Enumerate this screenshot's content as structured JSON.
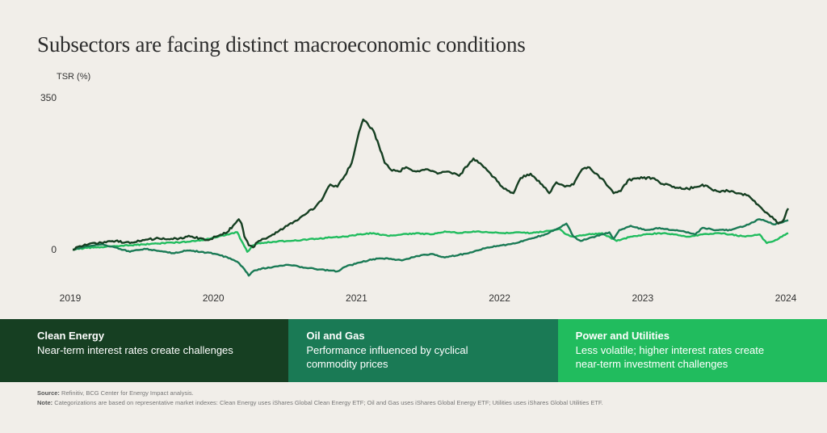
{
  "title": "Subsectors are facing distinct macroeconomic conditions",
  "chart_data": {
    "type": "line",
    "title": "Subsectors are facing distinct macroeconomic conditions",
    "xlabel": "",
    "ylabel": "TSR (%)",
    "y_ticks": [
      0,
      350
    ],
    "x_ticks": [
      "2019",
      "2020",
      "2021",
      "2022",
      "2023",
      "2024"
    ],
    "xlim": [
      2019,
      2024
    ],
    "ylim": [
      -60,
      350
    ],
    "grid": false,
    "legend": "bottom",
    "series": [
      {
        "name": "Clean Energy",
        "color": "#163f22",
        "points": [
          [
            2019.0,
            0
          ],
          [
            2019.05,
            8
          ],
          [
            2019.12,
            14
          ],
          [
            2019.2,
            16
          ],
          [
            2019.3,
            20
          ],
          [
            2019.4,
            15
          ],
          [
            2019.5,
            22
          ],
          [
            2019.6,
            26
          ],
          [
            2019.7,
            24
          ],
          [
            2019.8,
            30
          ],
          [
            2019.9,
            26
          ],
          [
            2019.95,
            22
          ],
          [
            2020.0,
            30
          ],
          [
            2020.08,
            40
          ],
          [
            2020.12,
            55
          ],
          [
            2020.16,
            70
          ],
          [
            2020.18,
            60
          ],
          [
            2020.2,
            30
          ],
          [
            2020.23,
            10
          ],
          [
            2020.26,
            5
          ],
          [
            2020.3,
            20
          ],
          [
            2020.35,
            25
          ],
          [
            2020.42,
            40
          ],
          [
            2020.5,
            55
          ],
          [
            2020.58,
            70
          ],
          [
            2020.62,
            80
          ],
          [
            2020.7,
            100
          ],
          [
            2020.75,
            120
          ],
          [
            2020.8,
            150
          ],
          [
            2020.85,
            145
          ],
          [
            2020.9,
            170
          ],
          [
            2020.95,
            200
          ],
          [
            2021.0,
            270
          ],
          [
            2021.03,
            300
          ],
          [
            2021.05,
            295
          ],
          [
            2021.08,
            280
          ],
          [
            2021.1,
            275
          ],
          [
            2021.14,
            240
          ],
          [
            2021.18,
            200
          ],
          [
            2021.22,
            185
          ],
          [
            2021.28,
            180
          ],
          [
            2021.33,
            190
          ],
          [
            2021.4,
            180
          ],
          [
            2021.48,
            185
          ],
          [
            2021.55,
            175
          ],
          [
            2021.62,
            180
          ],
          [
            2021.7,
            170
          ],
          [
            2021.8,
            210
          ],
          [
            2021.86,
            195
          ],
          [
            2021.92,
            175
          ],
          [
            2022.0,
            145
          ],
          [
            2022.05,
            135
          ],
          [
            2022.08,
            130
          ],
          [
            2022.13,
            165
          ],
          [
            2022.2,
            175
          ],
          [
            2022.28,
            150
          ],
          [
            2022.33,
            130
          ],
          [
            2022.38,
            155
          ],
          [
            2022.44,
            145
          ],
          [
            2022.5,
            150
          ],
          [
            2022.56,
            185
          ],
          [
            2022.6,
            190
          ],
          [
            2022.66,
            175
          ],
          [
            2022.72,
            155
          ],
          [
            2022.78,
            130
          ],
          [
            2022.83,
            135
          ],
          [
            2022.88,
            160
          ],
          [
            2022.95,
            165
          ],
          [
            2023.05,
            165
          ],
          [
            2023.1,
            155
          ],
          [
            2023.2,
            145
          ],
          [
            2023.3,
            140
          ],
          [
            2023.4,
            150
          ],
          [
            2023.5,
            135
          ],
          [
            2023.58,
            135
          ],
          [
            2023.65,
            130
          ],
          [
            2023.72,
            125
          ],
          [
            2023.8,
            100
          ],
          [
            2023.85,
            85
          ],
          [
            2023.9,
            70
          ],
          [
            2023.93,
            60
          ],
          [
            2023.96,
            65
          ],
          [
            2024.0,
            95
          ]
        ]
      },
      {
        "name": "Oil and Gas",
        "color": "#1a7a55",
        "points": [
          [
            2019.0,
            0
          ],
          [
            2019.1,
            8
          ],
          [
            2019.2,
            12
          ],
          [
            2019.3,
            5
          ],
          [
            2019.4,
            -5
          ],
          [
            2019.5,
            2
          ],
          [
            2019.6,
            -3
          ],
          [
            2019.7,
            -8
          ],
          [
            2019.8,
            -2
          ],
          [
            2019.9,
            -5
          ],
          [
            2020.0,
            -10
          ],
          [
            2020.1,
            -20
          ],
          [
            2020.15,
            -28
          ],
          [
            2020.2,
            -45
          ],
          [
            2020.23,
            -60
          ],
          [
            2020.26,
            -50
          ],
          [
            2020.3,
            -45
          ],
          [
            2020.4,
            -40
          ],
          [
            2020.5,
            -35
          ],
          [
            2020.6,
            -40
          ],
          [
            2020.7,
            -45
          ],
          [
            2020.8,
            -48
          ],
          [
            2020.85,
            -50
          ],
          [
            2020.9,
            -40
          ],
          [
            2021.0,
            -30
          ],
          [
            2021.1,
            -22
          ],
          [
            2021.2,
            -20
          ],
          [
            2021.3,
            -25
          ],
          [
            2021.4,
            -15
          ],
          [
            2021.5,
            -10
          ],
          [
            2021.6,
            -18
          ],
          [
            2021.7,
            -12
          ],
          [
            2021.8,
            -5
          ],
          [
            2021.9,
            5
          ],
          [
            2022.0,
            10
          ],
          [
            2022.1,
            15
          ],
          [
            2022.2,
            25
          ],
          [
            2022.3,
            35
          ],
          [
            2022.4,
            50
          ],
          [
            2022.45,
            60
          ],
          [
            2022.5,
            30
          ],
          [
            2022.55,
            20
          ],
          [
            2022.6,
            25
          ],
          [
            2022.7,
            35
          ],
          [
            2022.75,
            40
          ],
          [
            2022.78,
            25
          ],
          [
            2022.82,
            45
          ],
          [
            2022.9,
            55
          ],
          [
            2023.0,
            45
          ],
          [
            2023.1,
            50
          ],
          [
            2023.2,
            45
          ],
          [
            2023.3,
            40
          ],
          [
            2023.35,
            35
          ],
          [
            2023.4,
            50
          ],
          [
            2023.5,
            45
          ],
          [
            2023.6,
            45
          ],
          [
            2023.7,
            55
          ],
          [
            2023.8,
            70
          ],
          [
            2023.85,
            65
          ],
          [
            2023.9,
            58
          ],
          [
            2024.0,
            68
          ]
        ]
      },
      {
        "name": "Power and Utilities",
        "color": "#21bc5e",
        "points": [
          [
            2019.0,
            0
          ],
          [
            2019.1,
            4
          ],
          [
            2019.2,
            6
          ],
          [
            2019.3,
            8
          ],
          [
            2019.4,
            10
          ],
          [
            2019.5,
            12
          ],
          [
            2019.6,
            14
          ],
          [
            2019.7,
            16
          ],
          [
            2019.8,
            18
          ],
          [
            2019.9,
            22
          ],
          [
            2020.0,
            28
          ],
          [
            2020.08,
            35
          ],
          [
            2020.15,
            40
          ],
          [
            2020.18,
            20
          ],
          [
            2020.22,
            -5
          ],
          [
            2020.26,
            10
          ],
          [
            2020.3,
            15
          ],
          [
            2020.4,
            18
          ],
          [
            2020.5,
            20
          ],
          [
            2020.6,
            22
          ],
          [
            2020.7,
            25
          ],
          [
            2020.8,
            28
          ],
          [
            2020.9,
            30
          ],
          [
            2021.0,
            35
          ],
          [
            2021.1,
            38
          ],
          [
            2021.2,
            32
          ],
          [
            2021.3,
            35
          ],
          [
            2021.4,
            38
          ],
          [
            2021.5,
            35
          ],
          [
            2021.6,
            42
          ],
          [
            2021.7,
            38
          ],
          [
            2021.8,
            42
          ],
          [
            2021.9,
            40
          ],
          [
            2022.0,
            38
          ],
          [
            2022.1,
            40
          ],
          [
            2022.2,
            38
          ],
          [
            2022.3,
            42
          ],
          [
            2022.4,
            48
          ],
          [
            2022.45,
            35
          ],
          [
            2022.5,
            30
          ],
          [
            2022.6,
            35
          ],
          [
            2022.7,
            38
          ],
          [
            2022.8,
            20
          ],
          [
            2022.9,
            30
          ],
          [
            2023.0,
            35
          ],
          [
            2023.1,
            38
          ],
          [
            2023.2,
            35
          ],
          [
            2023.3,
            30
          ],
          [
            2023.4,
            35
          ],
          [
            2023.5,
            38
          ],
          [
            2023.6,
            35
          ],
          [
            2023.7,
            30
          ],
          [
            2023.8,
            35
          ],
          [
            2023.85,
            15
          ],
          [
            2023.9,
            20
          ],
          [
            2024.0,
            38
          ]
        ]
      }
    ]
  },
  "legend": [
    {
      "name": "Clean Energy",
      "description": "Near-term interest rates create challenges",
      "color": "#163f22"
    },
    {
      "name": "Oil and Gas",
      "description": "Performance influenced by cyclical commodity prices",
      "color": "#1a7a55"
    },
    {
      "name": "Power and Utilities",
      "description": "Less volatile; higher interest rates create near-term investment challenges",
      "color": "#21bc5e"
    }
  ],
  "footnotes": {
    "source_label": "Source:",
    "source_text": "Refinitiv, BCG Center for Energy Impact analysis.",
    "note_label": "Note:",
    "note_text": "Categorizations are based on representative market indexes: Clean Energy uses iShares Global Clean Energy ETF; Oil and Gas uses iShares Global Energy ETF; Utilities uses iShares Global Utilities ETF."
  }
}
